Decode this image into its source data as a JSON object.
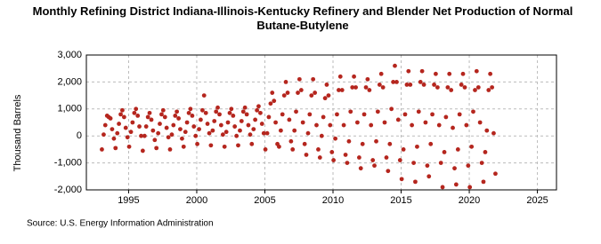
{
  "chart_data": {
    "type": "scatter",
    "title": "Monthly Refining District Indiana-Illinois-Kentucky Refinery and Blender Net Production of Normal Butane-Butylene",
    "y_label": "Thousand Barrels",
    "source": "Source: U.S. Energy Information Administration",
    "color": "#b5261e",
    "grid": true,
    "xlim": [
      1991.9,
      2026.4
    ],
    "xticks": [
      1995,
      2000,
      2005,
      2010,
      2015,
      2020,
      2025
    ],
    "ylim": [
      -2000,
      3000
    ],
    "yticks": [
      {
        "value": -2000,
        "label": "-2,000"
      },
      {
        "value": -1000,
        "label": "-1,000"
      },
      0,
      {
        "value": 1000,
        "label": "1,000"
      },
      {
        "value": 2000,
        "label": "2,000"
      },
      {
        "value": 3000,
        "label": "3,000"
      }
    ],
    "x": [
      1993.04,
      1993.17,
      1993.29,
      1993.42,
      1993.54,
      1993.67,
      1993.79,
      1993.92,
      1994.04,
      1994.17,
      1994.29,
      1994.42,
      1994.54,
      1994.67,
      1994.79,
      1994.92,
      1995.04,
      1995.17,
      1995.29,
      1995.42,
      1995.54,
      1995.67,
      1995.79,
      1995.92,
      1996.04,
      1996.17,
      1996.29,
      1996.42,
      1996.54,
      1996.67,
      1996.79,
      1996.92,
      1997.04,
      1997.17,
      1997.29,
      1997.42,
      1997.54,
      1997.67,
      1997.79,
      1997.92,
      1998.04,
      1998.17,
      1998.29,
      1998.42,
      1998.54,
      1998.67,
      1998.79,
      1998.92,
      1999.04,
      1999.17,
      1999.29,
      1999.42,
      1999.54,
      1999.67,
      1999.79,
      1999.92,
      2000.04,
      2000.17,
      2000.29,
      2000.42,
      2000.54,
      2000.67,
      2000.79,
      2000.92,
      2001.04,
      2001.17,
      2001.29,
      2001.42,
      2001.54,
      2001.67,
      2001.79,
      2001.92,
      2002.04,
      2002.17,
      2002.29,
      2002.42,
      2002.54,
      2002.67,
      2002.79,
      2002.92,
      2003.04,
      2003.17,
      2003.29,
      2003.42,
      2003.54,
      2003.67,
      2003.79,
      2003.92,
      2004.04,
      2004.17,
      2004.29,
      2004.42,
      2004.54,
      2004.67,
      2004.79,
      2004.92,
      2005.04,
      2005.17,
      2005.29,
      2005.42,
      2005.54,
      2005.67,
      2005.79,
      2005.92,
      2006.04,
      2006.17,
      2006.29,
      2006.42,
      2006.54,
      2006.67,
      2006.79,
      2006.92,
      2007.04,
      2007.17,
      2007.29,
      2007.42,
      2007.54,
      2007.67,
      2007.79,
      2007.92,
      2008.04,
      2008.17,
      2008.29,
      2008.42,
      2008.54,
      2008.67,
      2008.79,
      2008.92,
      2009.04,
      2009.17,
      2009.29,
      2009.42,
      2009.54,
      2009.67,
      2009.79,
      2009.92,
      2010.04,
      2010.17,
      2010.29,
      2010.42,
      2010.54,
      2010.67,
      2010.79,
      2010.92,
      2011.04,
      2011.17,
      2011.29,
      2011.42,
      2011.54,
      2011.67,
      2011.79,
      2011.92,
      2012.04,
      2012.17,
      2012.29,
      2012.42,
      2012.54,
      2012.67,
      2012.79,
      2012.92,
      2013.04,
      2013.17,
      2013.29,
      2013.42,
      2013.54,
      2013.67,
      2013.79,
      2013.92,
      2014.04,
      2014.17,
      2014.29,
      2014.42,
      2014.54,
      2014.67,
      2014.79,
      2014.92,
      2015.04,
      2015.17,
      2015.29,
      2015.42,
      2015.54,
      2015.67,
      2015.79,
      2015.92,
      2016.04,
      2016.17,
      2016.29,
      2016.42,
      2016.54,
      2016.67,
      2016.79,
      2016.92,
      2017.04,
      2017.17,
      2017.29,
      2017.42,
      2017.54,
      2017.67,
      2017.79,
      2017.92,
      2018.04,
      2018.17,
      2018.29,
      2018.42,
      2018.54,
      2018.67,
      2018.79,
      2018.92,
      2019.04,
      2019.17,
      2019.29,
      2019.42,
      2019.54,
      2019.67,
      2019.79,
      2019.92,
      2020.04,
      2020.17,
      2020.29,
      2020.42,
      2020.54,
      2020.67,
      2020.79,
      2020.92,
      2021.04,
      2021.17,
      2021.29,
      2021.42,
      2021.54,
      2021.67,
      2021.79,
      2021.92
    ],
    "values": [
      -500,
      50,
      400,
      750,
      700,
      650,
      250,
      -100,
      -450,
      100,
      450,
      800,
      950,
      700,
      300,
      -50,
      -400,
      150,
      500,
      850,
      1000,
      750,
      350,
      0,
      -550,
      0,
      350,
      700,
      850,
      600,
      200,
      -150,
      -450,
      100,
      450,
      800,
      950,
      700,
      300,
      -50,
      -500,
      50,
      400,
      750,
      900,
      650,
      250,
      -100,
      -400,
      150,
      500,
      850,
      1000,
      750,
      350,
      0,
      -300,
      250,
      600,
      950,
      1500,
      850,
      450,
      100,
      -350,
      200,
      550,
      900,
      1050,
      800,
      400,
      50,
      -400,
      150,
      500,
      850,
      1000,
      750,
      350,
      0,
      -350,
      200,
      550,
      900,
      1050,
      800,
      400,
      50,
      -300,
      250,
      600,
      950,
      1100,
      850,
      450,
      100,
      -500,
      100,
      700,
      1200,
      1600,
      1300,
      500,
      -300,
      -400,
      200,
      800,
      1500,
      2000,
      1600,
      600,
      -200,
      -500,
      200,
      900,
      1600,
      2100,
      1700,
      500,
      -300,
      -700,
      100,
      800,
      1500,
      2100,
      1600,
      400,
      -500,
      -800,
      0,
      700,
      1400,
      1900,
      1500,
      400,
      -600,
      -900,
      -100,
      800,
      1700,
      2200,
      1700,
      400,
      -700,
      -1000,
      -200,
      900,
      1800,
      2200,
      1800,
      500,
      -800,
      -1200,
      -300,
      800,
      1800,
      2100,
      1700,
      400,
      -900,
      -1100,
      -200,
      900,
      1900,
      2300,
      1800,
      500,
      -800,
      -1300,
      -300,
      1000,
      2000,
      2600,
      2000,
      600,
      -900,
      -1600,
      -500,
      800,
      1900,
      2400,
      1900,
      400,
      -1000,
      -1700,
      -400,
      900,
      2000,
      2400,
      1900,
      500,
      -1100,
      -1500,
      -300,
      800,
      1900,
      2300,
      1800,
      400,
      -1000,
      -1900,
      -600,
      700,
      1800,
      2300,
      1700,
      300,
      -1200,
      -1800,
      -500,
      800,
      1900,
      2300,
      1800,
      400,
      -1100,
      -1900,
      -400,
      900,
      1700,
      2400,
      1800,
      500,
      -1000,
      -1700,
      -600,
      200,
      1700,
      2300,
      1800,
      100,
      -1400
    ]
  }
}
